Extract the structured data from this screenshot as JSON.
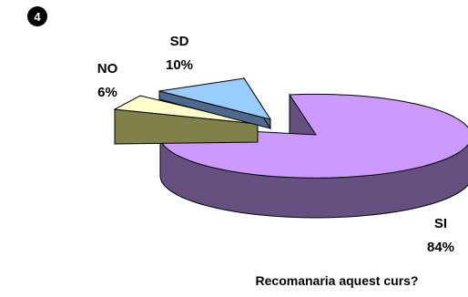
{
  "badge": {
    "number": "4"
  },
  "colors": {
    "si_top": "#CC99FF",
    "si_side": "#66507F",
    "sd_top": "#99CCFF",
    "sd_side": "#4D6A8C",
    "no_top": "#FFFFCC",
    "no_side": "#808049",
    "outline": "#000000",
    "badge_bg": "#000000",
    "badge_fg": "#ffffff"
  },
  "chart_data": {
    "type": "pie",
    "title": "Recomanaria aquest curs?",
    "slices": [
      {
        "label": "SI",
        "value": 84,
        "value_label": "84%",
        "color": "#CC99FF"
      },
      {
        "label": "SD",
        "value": 10,
        "value_label": "10%",
        "color": "#99CCFF"
      },
      {
        "label": "NO",
        "value": 6,
        "value_label": "6%",
        "color": "#FFFFCC"
      }
    ],
    "style": "3d-exploded"
  }
}
